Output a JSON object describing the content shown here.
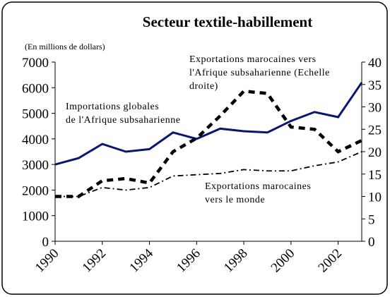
{
  "chart_data": {
    "type": "line",
    "title": "Secteur textile-habillement",
    "y_label": "(En millions de dollars)",
    "annotations": [
      "Exportations marocaines  vers",
      "l'Afrique subsaharienne (Echelle",
      "droite)",
      "Importations globales",
      "de l'Afrique subsaharienne",
      "Exportations marocaines",
      "vers le monde"
    ],
    "x": [
      1990,
      1991,
      1992,
      1993,
      1994,
      1995,
      1996,
      1997,
      1998,
      1999,
      2000,
      2001,
      2002,
      2003
    ],
    "xlim": [
      1990,
      2003
    ],
    "xticks": [
      1990,
      1992,
      1994,
      1996,
      1998,
      2000,
      2002
    ],
    "ylim": [
      0,
      7000
    ],
    "yticks": [
      0,
      1000,
      2000,
      3000,
      4000,
      5000,
      6000,
      7000
    ],
    "y2lim": [
      0,
      40
    ],
    "y2ticks": [
      0,
      5,
      10,
      15,
      20,
      25,
      30,
      35,
      40
    ],
    "series": [
      {
        "name": "Importations globales de l'Afrique subsaharienne",
        "color": "#0a1670",
        "style": "solid",
        "values": [
          3000,
          3250,
          3800,
          3500,
          3600,
          4250,
          4000,
          4400,
          4300,
          4250,
          4700,
          5050,
          4850,
          6200
        ]
      },
      {
        "name": "Exportations marocaines vers l'Afrique subsaharienne (Echelle droite)",
        "color": "#000000",
        "style": "dashed",
        "axis": "y2",
        "values": [
          10,
          10,
          13.5,
          14,
          13,
          20,
          23,
          28,
          33.5,
          33,
          25.5,
          25,
          20,
          22.5
        ]
      },
      {
        "name": "Exportations marocaines vers le monde",
        "color": "#000000",
        "style": "dashdot",
        "values": [
          1750,
          1750,
          2100,
          2000,
          2100,
          2550,
          2600,
          2650,
          2800,
          2750,
          2750,
          2950,
          3100,
          3500
        ]
      }
    ]
  }
}
